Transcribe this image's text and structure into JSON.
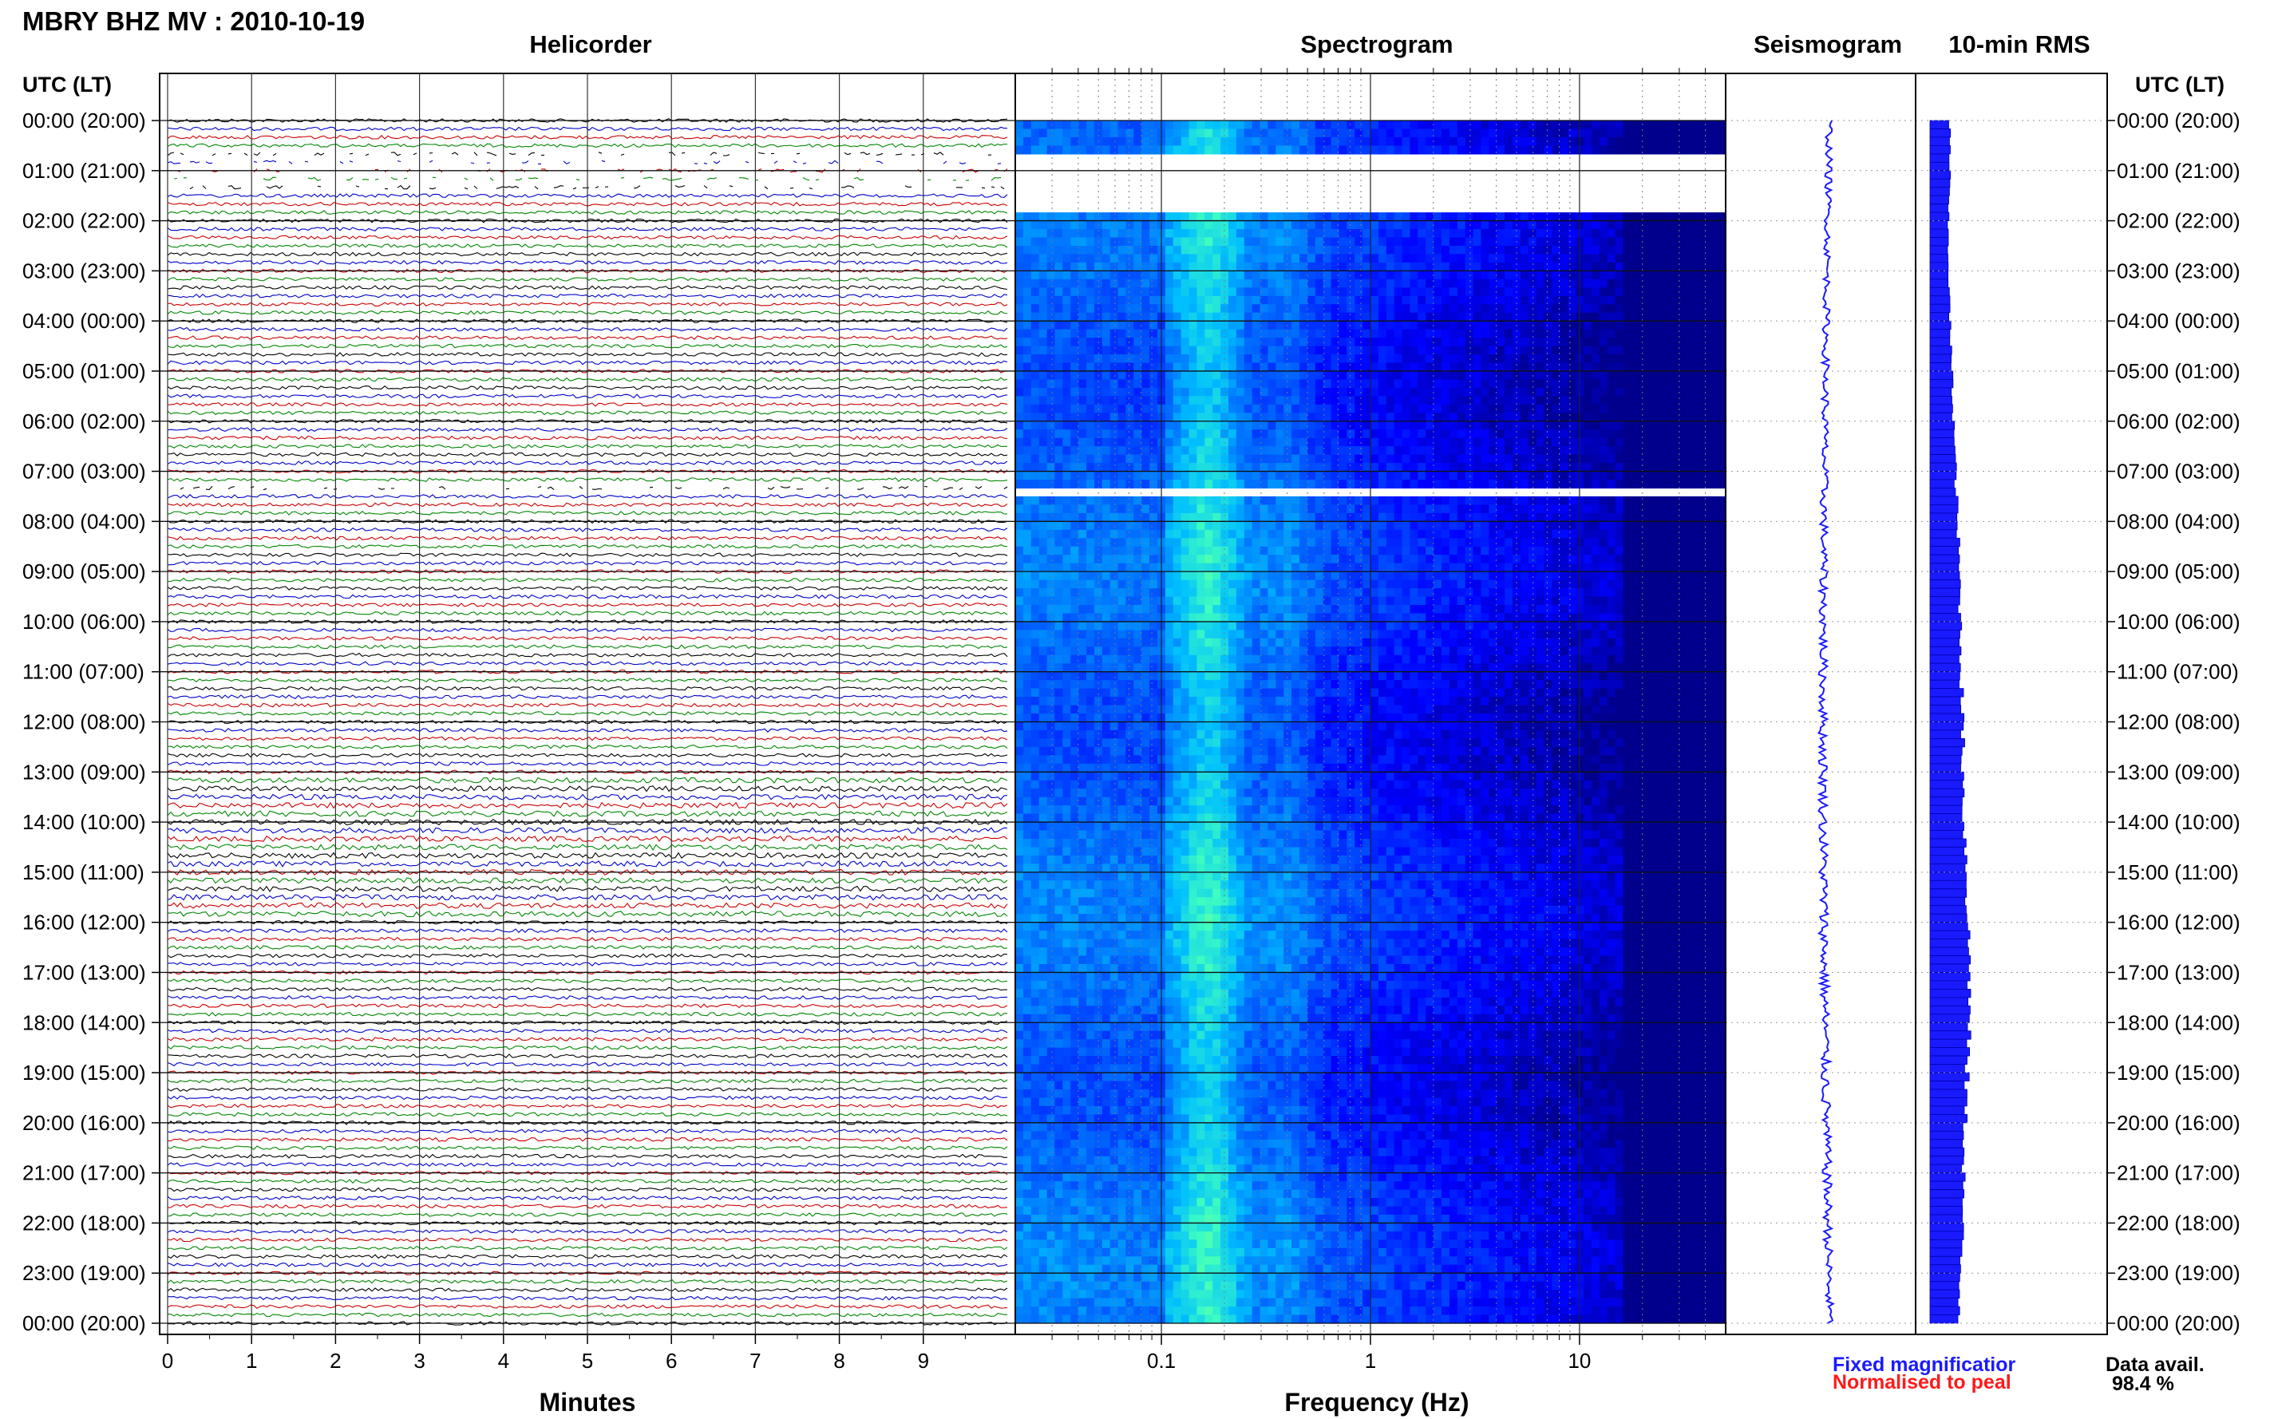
{
  "title": "MBRY BHZ MV : 2010-10-19",
  "panels": {
    "helicorder": "Helicorder",
    "spectrogram": "Spectrogram",
    "seismogram": "Seismogram",
    "rms": "10-min RMS"
  },
  "time_axis_label": "UTC (LT)",
  "hour_labels": [
    "00:00 (20:00)",
    "01:00 (21:00)",
    "02:00 (22:00)",
    "03:00 (23:00)",
    "04:00 (00:00)",
    "05:00 (01:00)",
    "06:00 (02:00)",
    "07:00 (03:00)",
    "08:00 (04:00)",
    "09:00 (05:00)",
    "10:00 (06:00)",
    "11:00 (07:00)",
    "12:00 (08:00)",
    "13:00 (09:00)",
    "14:00 (10:00)",
    "15:00 (11:00)",
    "16:00 (12:00)",
    "17:00 (13:00)",
    "18:00 (14:00)",
    "19:00 (15:00)",
    "20:00 (16:00)",
    "21:00 (17:00)",
    "22:00 (18:00)",
    "23:00 (19:00)",
    "00:00 (20:00)"
  ],
  "legend": {
    "fixed": "Fixed magnificatior",
    "normalised": "Normalised to peal",
    "fixed_color": "#1a1aff",
    "normalised_color": "#ff1a1a"
  },
  "data_availability": {
    "label": "Data avail.",
    "value": "98.4 %"
  },
  "chart_data": [
    {
      "type": "line",
      "name": "helicorder",
      "xlabel": "Minutes",
      "x_ticks": [
        0,
        1,
        2,
        3,
        4,
        5,
        6,
        7,
        8,
        9
      ],
      "xlim": [
        0,
        10
      ],
      "lines_per_hour": 6,
      "trace_colors": [
        "#000000",
        "#0000cc",
        "#cc0000",
        "#008800"
      ],
      "gaps_utc_hours": [
        [
          0.55,
          1.35
        ],
        [
          7.2,
          7.35
        ]
      ]
    },
    {
      "type": "heatmap",
      "name": "spectrogram",
      "xlabel": "Frequency (Hz)",
      "x_scale": "log",
      "x_ticks": [
        0.1,
        1,
        10
      ],
      "x_tick_labels": [
        "0.1",
        "1",
        "10"
      ],
      "xlim": [
        0.02,
        50
      ],
      "peak_frequency_hz": 0.17,
      "secondary_band_hz": 0.4,
      "gaps_utc_hours": [
        [
          0.55,
          1.7
        ],
        [
          7.2,
          7.35
        ]
      ],
      "colormap": [
        "#00008c",
        "#0000ff",
        "#0060ff",
        "#00bfff",
        "#40ffbf",
        "#c0ff40"
      ]
    },
    {
      "type": "line",
      "name": "seismogram",
      "color": "#1a1aff"
    },
    {
      "type": "bar",
      "name": "rms",
      "orientation": "horizontal",
      "color": "#1a1aff",
      "interval_minutes": 10,
      "relative_values_hourly": [
        0.35,
        0.35,
        0.3,
        0.32,
        0.35,
        0.4,
        0.45,
        0.5,
        0.55,
        0.6,
        0.63,
        0.65,
        0.68,
        0.7,
        0.72,
        0.8,
        0.82,
        0.88,
        0.85,
        0.8,
        0.75,
        0.72,
        0.68,
        0.62,
        0.6
      ]
    }
  ]
}
